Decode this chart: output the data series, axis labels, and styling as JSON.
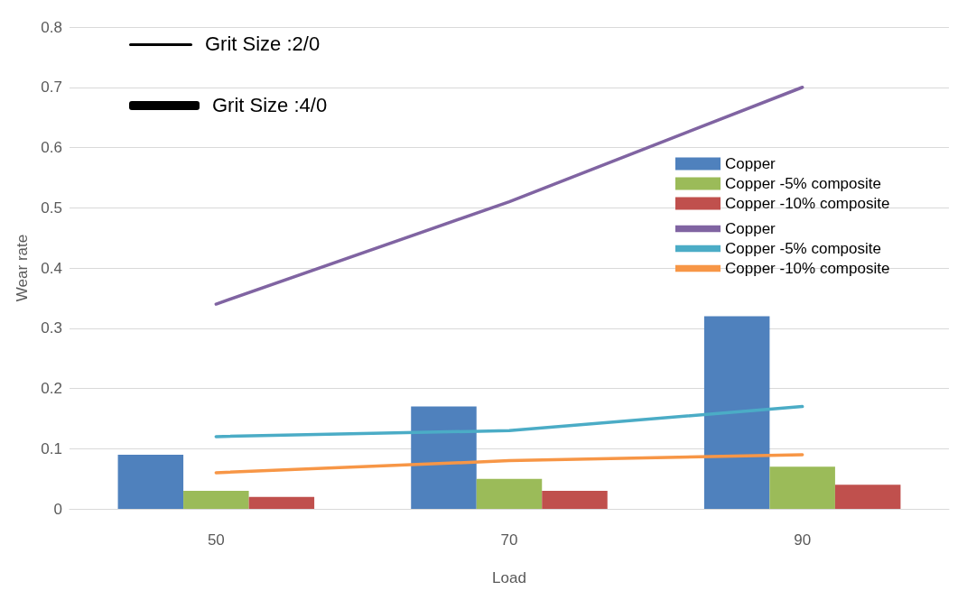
{
  "chart_data": {
    "type": "bar",
    "xlabel": "Load",
    "ylabel": "Wear rate",
    "categories": [
      "50",
      "70",
      "90"
    ],
    "series": [
      {
        "name": "Copper",
        "color": "#4f81bd",
        "values": [
          0.09,
          0.17,
          0.32
        ]
      },
      {
        "name": "Copper -5% composite",
        "color": "#9bbb59",
        "values": [
          0.03,
          0.05,
          0.07
        ]
      },
      {
        "name": "Copper -10% composite",
        "color": "#c0504d",
        "values": [
          0.02,
          0.03,
          0.04
        ]
      },
      {
        "name": "Copper",
        "type": "line",
        "color": "#8064a2",
        "values": [
          0.34,
          0.51,
          0.7
        ]
      },
      {
        "name": "Copper -5% composite",
        "type": "line",
        "color": "#4bacc6",
        "values": [
          0.12,
          0.13,
          0.17
        ]
      },
      {
        "name": "Copper -10% composite",
        "type": "line",
        "color": "#f79646",
        "values": [
          0.06,
          0.08,
          0.09
        ]
      }
    ],
    "ylim": [
      0,
      0.8
    ],
    "yticks": [
      0,
      0.1,
      0.2,
      0.3,
      0.4,
      0.5,
      0.6,
      0.7,
      0.8
    ],
    "grid": "y",
    "legend": "right",
    "marker": "none",
    "annotations": [
      "Grit Size :2/0",
      "Grit Size :4/0"
    ]
  }
}
